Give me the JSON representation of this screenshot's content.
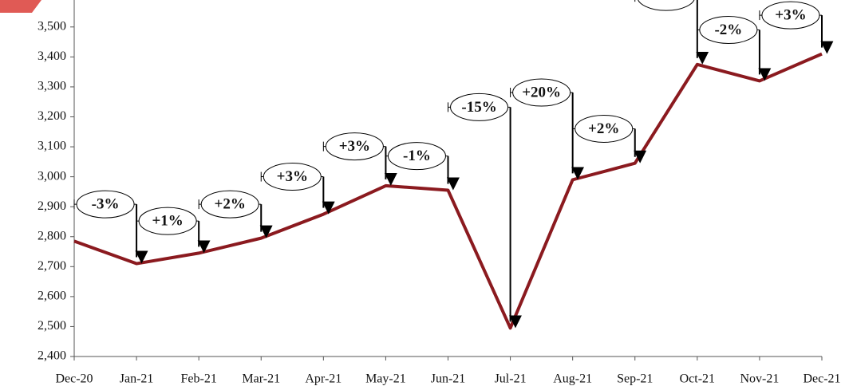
{
  "chart_data": {
    "type": "line",
    "categories": [
      "Dec-20",
      "Jan-21",
      "Feb-21",
      "Mar-21",
      "Apr-21",
      "May-21",
      "Jun-21",
      "Jul-21",
      "Aug-21",
      "Sep-21",
      "Oct-21",
      "Nov-21",
      "Dec-21"
    ],
    "series": [
      {
        "color": "#8b1a1f",
        "values": [
          2785,
          2710,
          2745,
          2795,
          2875,
          2970,
          2955,
          2495,
          2990,
          3045,
          3375,
          3320,
          3410
        ]
      }
    ],
    "change_labels": [
      "-3%",
      "+1%",
      "+2%",
      "+3%",
      "+3%",
      "-1%",
      "-15%",
      "+20%",
      "+2%",
      null,
      "-2%",
      "+3%"
    ],
    "ylim": [
      2400,
      3590
    ],
    "yticks": [
      {
        "value": 2400,
        "label": "2,400"
      },
      {
        "value": 2500,
        "label": "2,500"
      },
      {
        "value": 2600,
        "label": "2,600"
      },
      {
        "value": 2700,
        "label": "2,700"
      },
      {
        "value": 2800,
        "label": "2,800"
      },
      {
        "value": 2900,
        "label": "2,900"
      },
      {
        "value": 3000,
        "label": "3,000"
      },
      {
        "value": 3100,
        "label": "3,100"
      },
      {
        "value": 3200,
        "label": "3,200"
      },
      {
        "value": 3300,
        "label": "3,300"
      },
      {
        "value": 3400,
        "label": "3,400"
      },
      {
        "value": 3500,
        "label": "3,500"
      }
    ]
  }
}
